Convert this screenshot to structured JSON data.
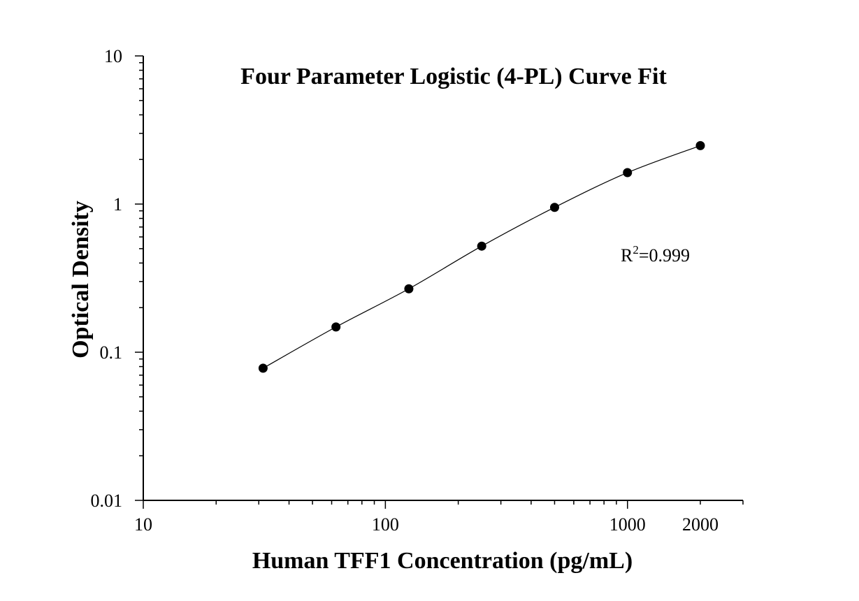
{
  "chart_data": {
    "type": "scatter",
    "title": "Four Parameter Logistic (4-PL) Curve Fit",
    "xlabel": "Human TFF1 Concentration (pg/mL)",
    "ylabel": "Optical Density",
    "xscale": "log",
    "yscale": "log",
    "xlim": [
      10,
      3000
    ],
    "ylim": [
      0.01,
      10
    ],
    "grid": false,
    "legend": "none",
    "x_ticks": [
      {
        "value": 10,
        "label": "10"
      },
      {
        "value": 100,
        "label": "100"
      },
      {
        "value": 1000,
        "label": "1000"
      },
      {
        "value": 2000,
        "label": "2000"
      }
    ],
    "y_ticks": [
      {
        "value": 0.01,
        "label": "0.01"
      },
      {
        "value": 0.1,
        "label": "0.1"
      },
      {
        "value": 1,
        "label": "1"
      },
      {
        "value": 10,
        "label": "10"
      }
    ],
    "series": [
      {
        "x": [
          31.25,
          62.5,
          125,
          250,
          500,
          1000,
          2000
        ],
        "y": [
          0.078,
          0.148,
          0.268,
          0.52,
          0.95,
          1.63,
          2.48
        ]
      }
    ],
    "annotations": [
      {
        "text_base": "R",
        "text_sup": "2",
        "text_rest": "=0.999"
      }
    ],
    "colors": {
      "points": "#000000",
      "curve": "#000000",
      "axes": "#000000"
    }
  }
}
